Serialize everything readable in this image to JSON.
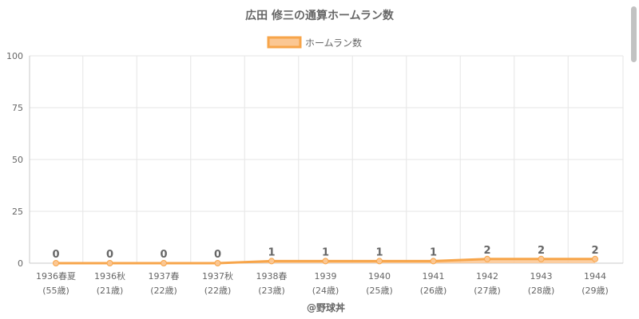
{
  "chart_data": {
    "type": "area",
    "title": "広田 修三の通算ホームラン数",
    "categories": [
      "1936春夏",
      "1936秋",
      "1937春",
      "1937秋",
      "1938春",
      "1939",
      "1940",
      "1941",
      "1942",
      "1943",
      "1944"
    ],
    "age_labels": [
      "(55歳)",
      "(21歳)",
      "(22歳)",
      "(22歳)",
      "(23歳)",
      "(24歳)",
      "(25歳)",
      "(26歳)",
      "(27歳)",
      "(28歳)",
      "(29歳)"
    ],
    "series": [
      {
        "name": "ホームラン数",
        "values": [
          0,
          0,
          0,
          0,
          1,
          1,
          1,
          1,
          2,
          2,
          2
        ]
      }
    ],
    "data_labels": [
      "0",
      "0",
      "0",
      "0",
      "1",
      "1",
      "1",
      "1",
      "2",
      "2",
      "2"
    ],
    "ylim": [
      0,
      100
    ],
    "yticks": [
      0,
      25,
      50,
      75,
      100
    ],
    "ytick_labels": [
      "0",
      "25",
      "50",
      "75",
      "100"
    ],
    "grid": true,
    "legend_position": "top",
    "colors": {
      "line": "#f7a54a",
      "fill": "#fbc793",
      "point": "#fbc793",
      "grid": "#e6e6e6",
      "axis": "#c8c8c8"
    }
  },
  "credit": "@野球丼"
}
